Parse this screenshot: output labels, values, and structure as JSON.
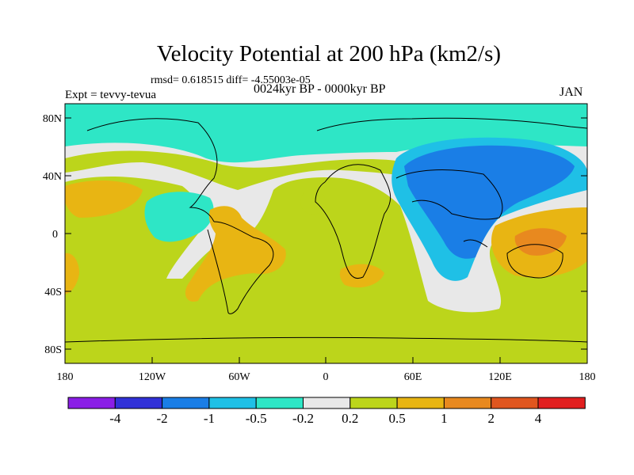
{
  "title": "Velocity Potential at 200 hPa (km2/s)",
  "stats": "rmsd= 0.618515 diff= -4.55003e-05",
  "experiment": "Expt = tevvy-tevua",
  "period": "0024kyr BP - 0000kyr BP",
  "month": "JAN",
  "lat_ticks": [
    "80N",
    "40N",
    "0",
    "40S",
    "80S"
  ],
  "lon_ticks": [
    "180",
    "120W",
    "60W",
    "0",
    "60E",
    "120E",
    "180"
  ],
  "colorbar": {
    "colors": [
      "#8a1ee6",
      "#3131d8",
      "#1a7ee6",
      "#1fc0e6",
      "#2ee6c6",
      "#e8e8e8",
      "#bcd51b",
      "#e8b513",
      "#e8891f",
      "#e0561f",
      "#e21f1f"
    ],
    "labels": [
      "-4",
      "-2",
      "-1",
      "-0.5",
      "-0.2",
      "0.2",
      "0.5",
      "1",
      "2",
      "4"
    ]
  },
  "legend_colors": {
    "teal": "#2ee6c6",
    "cyan": "#1fc0e6",
    "blue": "#1a7ee6",
    "white": "#e8e8e8",
    "green": "#bcd51b",
    "orange": "#e8b513",
    "darkorange": "#e8891f"
  }
}
